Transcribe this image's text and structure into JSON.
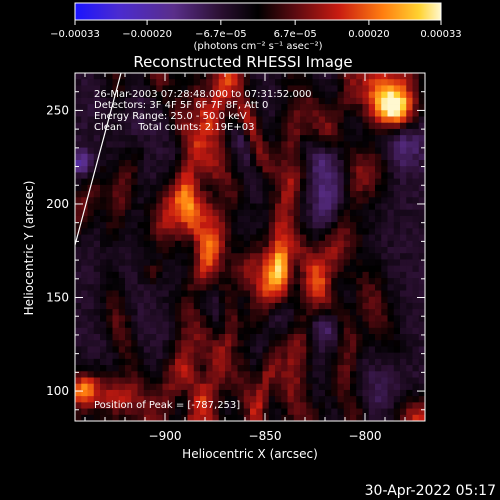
{
  "chart_data": {
    "type": "heatmap",
    "title": "Reconstructed RHESSI Image",
    "xlabel": "Heliocentric X (arcsec)",
    "ylabel": "Heliocentric Y (arcsec)",
    "xlim": [
      -945,
      -770
    ],
    "ylim": [
      84,
      270
    ],
    "x_ticks": [
      -900,
      -850,
      -800
    ],
    "y_ticks": [
      100,
      150,
      200,
      250
    ],
    "x_tick_labels": [
      "−900",
      "−850",
      "−800"
    ],
    "y_tick_labels": [
      "100",
      "150",
      "200",
      "250"
    ],
    "colorbar": {
      "colormap": "black-purple-red-orange-yellow-white",
      "range": [
        -0.00033,
        0.00033
      ],
      "ticks": [
        -0.00033,
        -0.0002,
        -6.7e-05,
        6.7e-05,
        0.0002,
        0.00033
      ],
      "tick_labels": [
        "−0.00033",
        "−0.00020",
        "−6.7e−05",
        "6.7e−05",
        "0.00020",
        "0.00033"
      ],
      "units": "(photons cm⁻² s⁻¹ asec⁻²)"
    },
    "annotations": [
      "26-Mar-2003 07:28:48.000 to 07:31:52.000",
      "Detectors: 3F 4F 5F 6F 7F 8F, Att 0",
      "Energy Range: 25.0 - 50.0 keV",
      "Clean     Total counts: 2.19E+03"
    ],
    "peak_label": "Position of Peak = [-787,253]",
    "peak": [
      -787,
      253
    ]
  },
  "footer": {
    "timestamp": "30-Apr-2022 05:17"
  }
}
